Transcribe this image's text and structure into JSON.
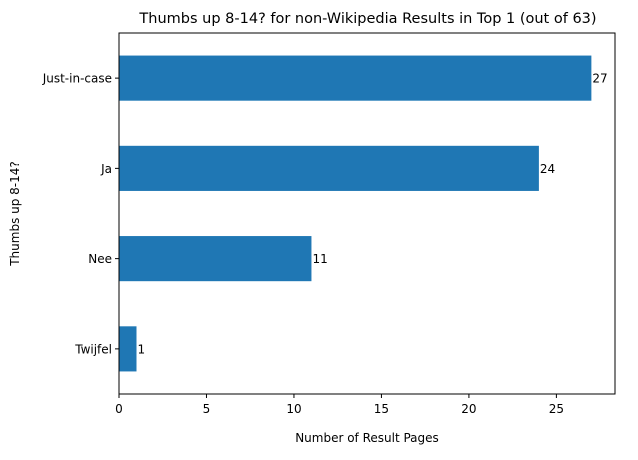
{
  "chart_data": {
    "type": "bar",
    "orientation": "horizontal",
    "title": "Thumbs up 8-14? for non-Wikipedia Results in Top 1 (out of 63)",
    "xlabel": "Number of Result Pages",
    "ylabel": "Thumbs up 8-14?",
    "categories": [
      "Just-in-case",
      "Ja",
      "Nee",
      "Twijfel"
    ],
    "values": [
      27,
      24,
      11,
      1
    ],
    "xlim": [
      0,
      28.35
    ],
    "xticks": [
      0,
      5,
      10,
      15,
      20,
      25
    ],
    "grid": false,
    "legend": "none",
    "bar_color": "#1f77b4"
  }
}
